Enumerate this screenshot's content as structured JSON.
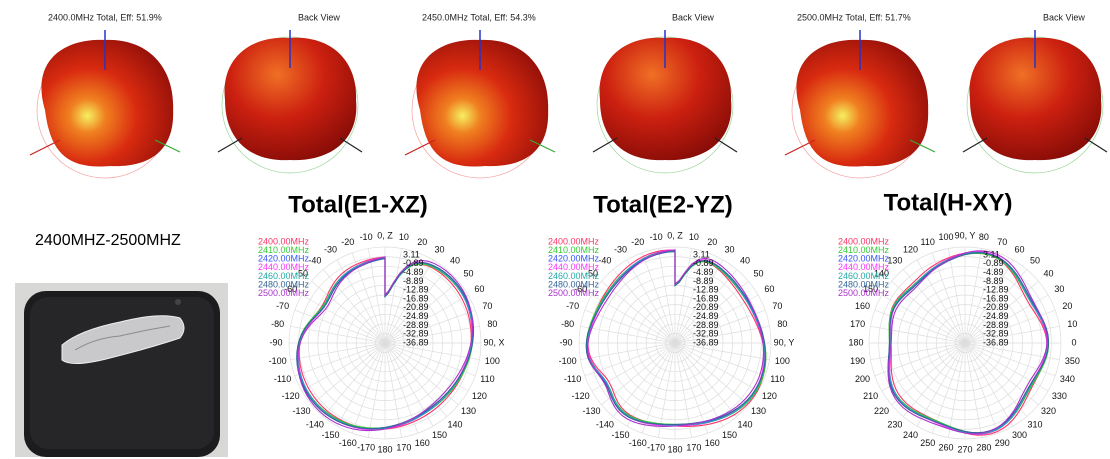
{
  "views": [
    {
      "label": "2400.0MHz Total, Eff: 51.9%",
      "back": "Back View"
    },
    {
      "label": "2450.0MHz Total, Eff: 54.3%",
      "back": "Back View"
    },
    {
      "label": "2500.0MHz Total, Eff: 51.7%",
      "back": "Back View"
    }
  ],
  "band_label": "2400MHZ-2500MHZ",
  "legend": [
    "2400.00MHz",
    "2410.00MHz",
    "2420.00MHz",
    "2440.00MHz",
    "2460.00MHz",
    "2480.00MHz",
    "2500.00MHz"
  ],
  "legend_colors": [
    "#ff3366",
    "#33cc33",
    "#3355ff",
    "#ff33ff",
    "#22aaaa",
    "#336699",
    "#aa33cc"
  ],
  "radial_labels": [
    "3.11",
    "-0.89",
    "-4.89",
    "-8.89",
    "-12.89",
    "-16.89",
    "-20.89",
    "-24.89",
    "-28.89",
    "-32.89",
    "-36.89"
  ],
  "polar_plots": [
    {
      "title": "Total(E1-XZ)",
      "angle_labels": [
        "0, Z",
        "10",
        "20",
        "30",
        "40",
        "50",
        "60",
        "70",
        "80",
        "90, X",
        "100",
        "110",
        "120",
        "130",
        "140",
        "150",
        "160",
        "170",
        "180",
        "-170",
        "-160",
        "-150",
        "-140",
        "-130",
        "-120",
        "-110",
        "-100",
        "-90",
        "-80",
        "-70",
        "-60",
        "-50",
        "-40",
        "-30",
        "-20",
        "-10"
      ]
    },
    {
      "title": "Total(E2-YZ)",
      "angle_labels": [
        "0, Z",
        "10",
        "20",
        "30",
        "40",
        "50",
        "60",
        "70",
        "80",
        "90, Y",
        "100",
        "110",
        "120",
        "130",
        "140",
        "150",
        "160",
        "170",
        "180",
        "-170",
        "-160",
        "-150",
        "-140",
        "-130",
        "-120",
        "-110",
        "-100",
        "-90",
        "-80",
        "-70",
        "-60",
        "-50",
        "-40",
        "-30",
        "-20",
        "-10"
      ]
    },
    {
      "title": "Total(H-XY)",
      "angle_labels": [
        "90, Y",
        "80",
        "70",
        "60",
        "50",
        "40",
        "30",
        "20",
        "10",
        "0",
        "350",
        "340",
        "330",
        "320",
        "310",
        "300",
        "290",
        "280",
        "270",
        "260",
        "250",
        "240",
        "230",
        "220",
        "210",
        "200",
        "190",
        "180",
        "170",
        "160",
        "150",
        "140",
        "130",
        "120",
        "110",
        "100"
      ]
    }
  ]
}
